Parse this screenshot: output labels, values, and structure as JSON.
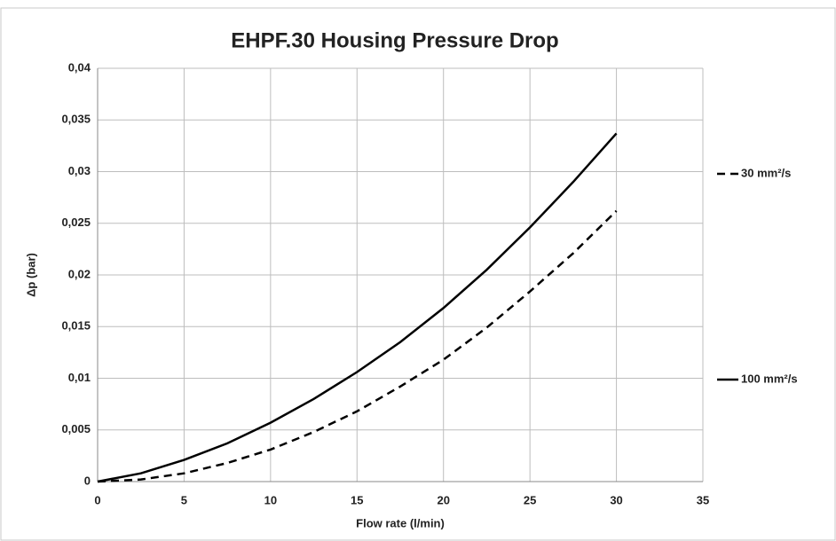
{
  "chart_data": {
    "type": "line",
    "title": "EHPF.30 Housing Pressure Drop",
    "xlabel": "Flow rate (l/min)",
    "ylabel": "Δp (bar)",
    "x": [
      0,
      2.5,
      5,
      7.5,
      10,
      12.5,
      15,
      17.5,
      20,
      22.5,
      25,
      27.5,
      30
    ],
    "series": [
      {
        "name": "30 mm²/s",
        "color": "#000000",
        "dash": "dashed",
        "values": [
          0,
          0.0002,
          0.0008,
          0.0018,
          0.0031,
          0.0048,
          0.0068,
          0.0092,
          0.0118,
          0.0149,
          0.0184,
          0.0221,
          0.0262
        ]
      },
      {
        "name": "100 mm²/s",
        "color": "#000000",
        "dash": "solid",
        "values": [
          0,
          0.0008,
          0.0021,
          0.0037,
          0.0057,
          0.008,
          0.0106,
          0.0135,
          0.0168,
          0.0205,
          0.0246,
          0.029,
          0.0337
        ]
      }
    ],
    "xlim": [
      0,
      35
    ],
    "xticks": [
      0,
      5,
      10,
      15,
      20,
      25,
      30,
      35
    ],
    "ylim": [
      0,
      0.04
    ],
    "yticks": [
      0,
      {
        "value": 0.005,
        "label": "0,005"
      },
      {
        "value": 0.01,
        "label": "0,01"
      },
      {
        "value": 0.015,
        "label": "0,015"
      },
      {
        "value": 0.02,
        "label": "0,02"
      },
      {
        "value": 0.025,
        "label": "0,025"
      },
      {
        "value": 0.03,
        "label": "0,03"
      },
      {
        "value": 0.035,
        "label": "0,035"
      },
      {
        "value": 0.04,
        "label": "0,04"
      }
    ],
    "grid": true,
    "legend": "right"
  }
}
